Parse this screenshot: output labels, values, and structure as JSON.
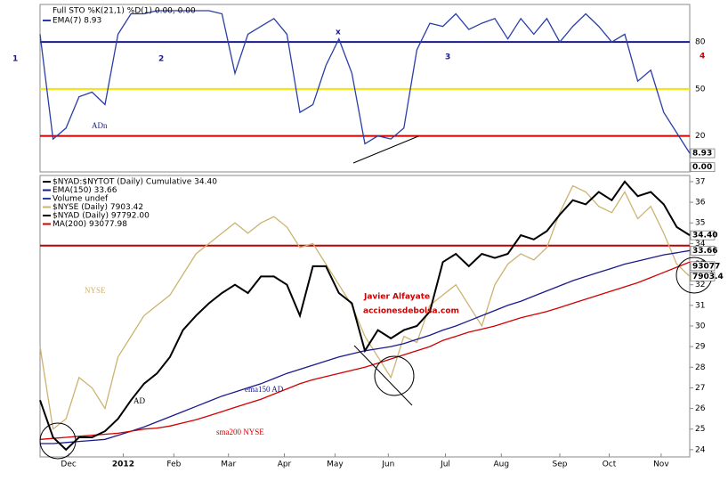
{
  "chart_data": [
    {
      "type": "line",
      "title": "Full STO %K(21,1) %D(1) 0.00, 0.00",
      "ylim": [
        -3,
        104
      ],
      "yticks": [
        20,
        50,
        80
      ],
      "grid_colors": [
        "#d00000",
        "#f2e600",
        "#1a1a8c"
      ],
      "xlim": [
        0,
        50
      ],
      "series": [
        {
          "name": "EMA(7) 8.93",
          "color": "#2b3ea8",
          "values": [
            85,
            18,
            25,
            45,
            48,
            40,
            85,
            98,
            98,
            100,
            100,
            100,
            100,
            100,
            98,
            60,
            85,
            90,
            95,
            85,
            35,
            40,
            65,
            82,
            60,
            15,
            20,
            18,
            25,
            75,
            92,
            90,
            98,
            88,
            92,
            95,
            82,
            95,
            85,
            95,
            80,
            90,
            98,
            90,
            80,
            85,
            55,
            62,
            35,
            22,
            8.93
          ]
        }
      ],
      "right_labels": [
        {
          "value": 8.93,
          "label": "8.93"
        },
        {
          "value": 0,
          "label": "0.00"
        }
      ],
      "annotations": [
        "1",
        "2",
        "3",
        "4",
        "x",
        "ADn"
      ]
    },
    {
      "type": "line",
      "ylim": [
        23.65,
        37.3
      ],
      "yticks": [
        24,
        25,
        26,
        27,
        28,
        29,
        30,
        31,
        32,
        33,
        34,
        35,
        36,
        37
      ],
      "xlim": [
        0,
        50
      ],
      "xticks": [
        {
          "value": 2.2,
          "label": "Dec"
        },
        {
          "value": 6.4,
          "label": "2012"
        },
        {
          "value": 10.3,
          "label": "Feb"
        },
        {
          "value": 14.5,
          "label": "Mar"
        },
        {
          "value": 18.8,
          "label": "Apr"
        },
        {
          "value": 22.7,
          "label": "May"
        },
        {
          "value": 26.8,
          "label": "Jun"
        },
        {
          "value": 31.2,
          "label": "Jul"
        },
        {
          "value": 35.5,
          "label": "Aug"
        },
        {
          "value": 40,
          "label": "Sep"
        },
        {
          "value": 43.8,
          "label": "Oct"
        },
        {
          "value": 47.8,
          "label": "Nov"
        }
      ],
      "hline": {
        "value": 33.9,
        "color": "#c00000"
      },
      "series": [
        {
          "name": "$NYSE (Daily) 7903.42",
          "color": "#cdb370",
          "values": [
            29,
            25,
            25.5,
            27.5,
            27,
            26,
            28.5,
            29.5,
            30.5,
            31,
            31.5,
            32.5,
            33.5,
            34,
            34.5,
            35,
            34.5,
            35,
            35.3,
            34.8,
            33.8,
            34,
            33,
            32,
            31,
            29.5,
            28.5,
            27.5,
            29.5,
            29.2,
            31,
            31.5,
            32,
            31,
            30,
            32,
            33,
            33.5,
            33.2,
            33.8,
            35.5,
            36.8,
            36.5,
            35.8,
            35.5,
            36.5,
            35.2,
            35.8,
            34.5,
            33,
            32.4
          ]
        },
        {
          "name": "EMA(150) 33.66",
          "color": "#1a1a8c",
          "values": [
            24.3,
            24.3,
            24.35,
            24.4,
            24.45,
            24.5,
            24.7,
            24.9,
            25.1,
            25.35,
            25.6,
            25.85,
            26.1,
            26.35,
            26.6,
            26.8,
            27.0,
            27.2,
            27.45,
            27.7,
            27.9,
            28.1,
            28.3,
            28.5,
            28.65,
            28.8,
            28.9,
            29.0,
            29.15,
            29.35,
            29.55,
            29.8,
            30.0,
            30.25,
            30.5,
            30.75,
            31.0,
            31.2,
            31.45,
            31.7,
            31.95,
            32.2,
            32.4,
            32.6,
            32.8,
            33.0,
            33.15,
            33.3,
            33.45,
            33.55,
            33.66
          ]
        },
        {
          "name": "MA(200) 93077.98",
          "color": "#d00000",
          "values": [
            24.5,
            24.55,
            24.6,
            24.65,
            24.7,
            24.75,
            24.8,
            24.9,
            25.0,
            25.05,
            25.15,
            25.3,
            25.45,
            25.65,
            25.85,
            26.05,
            26.25,
            26.45,
            26.7,
            26.95,
            27.2,
            27.4,
            27.55,
            27.7,
            27.85,
            28.0,
            28.2,
            28.4,
            28.6,
            28.8,
            29.0,
            29.3,
            29.5,
            29.7,
            29.85,
            30.0,
            30.2,
            30.4,
            30.55,
            30.7,
            30.9,
            31.1,
            31.3,
            31.5,
            31.7,
            31.9,
            32.1,
            32.35,
            32.6,
            32.85,
            33.1
          ]
        },
        {
          "name": "$NYAD:$NYTOT (Daily) Cumulative 34.40",
          "color": "#000000",
          "values": [
            26.4,
            24.6,
            24.0,
            24.6,
            24.6,
            24.9,
            25.5,
            26.4,
            27.2,
            27.7,
            28.5,
            29.8,
            30.5,
            31.1,
            31.6,
            32.0,
            31.6,
            32.4,
            32.4,
            32.0,
            30.5,
            32.9,
            32.9,
            31.6,
            31.1,
            28.8,
            29.8,
            29.4,
            29.8,
            30.0,
            30.7,
            33.1,
            33.5,
            32.9,
            33.5,
            33.3,
            33.5,
            34.4,
            34.2,
            34.6,
            35.4,
            36.1,
            35.9,
            36.5,
            36.1,
            37.0,
            36.3,
            36.5,
            35.9,
            34.8,
            34.4
          ]
        }
      ],
      "legend_extra": [
        {
          "text": "Volume undef",
          "color": "#2b3ea8"
        },
        {
          "text": "$NYAD (Daily) 97792.00",
          "color": "#000000"
        }
      ],
      "right_labels": [
        {
          "value": 34.4,
          "label": "34.40"
        },
        {
          "value": 33.66,
          "label": "33.66"
        },
        {
          "value": 32.9,
          "label": "93077"
        },
        {
          "value": 32.4,
          "label": "7903.4"
        }
      ],
      "annotations": [
        "NYSE",
        "AD",
        "ema150 AD",
        "sma200 NYSE",
        "Javier Alfayate",
        "accionesdebolsa.com"
      ]
    }
  ]
}
